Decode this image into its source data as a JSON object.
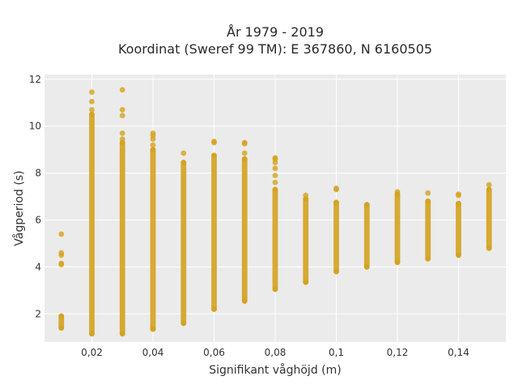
{
  "chart_data": {
    "type": "scatter",
    "title_lines": [
      "År 1979 - 2019",
      "Koordinat (Sweref 99 TM): E 367860, N 6160505"
    ],
    "xlabel": "Signifikant våghöjd (m)",
    "ylabel": "Vågperiod (s)",
    "xlim": [
      0.0045,
      0.1555
    ],
    "ylim": [
      0.8,
      12.2
    ],
    "x_ticks": [
      0.02,
      0.04,
      0.06,
      0.08,
      0.1,
      0.12,
      0.14
    ],
    "x_tick_labels": [
      "0,02",
      "0,04",
      "0,06",
      "0,08",
      "0,1",
      "0,12",
      "0,14"
    ],
    "y_ticks": [
      2,
      4,
      6,
      8,
      10,
      12
    ],
    "y_tick_labels": [
      "2",
      "4",
      "6",
      "8",
      "10",
      "12"
    ],
    "grid": true,
    "legend": "none",
    "colors": {
      "marker": "#d4a21e",
      "plot_bg": "#ebebeb",
      "grid": "#ffffff",
      "text": "#333333"
    },
    "series": [
      {
        "columns": [
          {
            "x": 0.01,
            "y_min": 1.4,
            "y_max": 1.9,
            "outliers": [
              4.1,
              4.15,
              4.5,
              4.6,
              5.4
            ]
          },
          {
            "x": 0.02,
            "y_min": 1.15,
            "y_max": 10.5,
            "outliers": [
              10.7,
              11.05,
              11.45
            ]
          },
          {
            "x": 0.03,
            "y_min": 1.15,
            "y_max": 9.3,
            "outliers": [
              9.45,
              9.7,
              10.45,
              10.7,
              11.55
            ]
          },
          {
            "x": 0.04,
            "y_min": 1.35,
            "y_max": 9.0,
            "outliers": [
              9.2,
              9.45,
              9.6,
              9.7
            ]
          },
          {
            "x": 0.05,
            "y_min": 1.6,
            "y_max": 8.45,
            "outliers": [
              8.85
            ]
          },
          {
            "x": 0.06,
            "y_min": 2.2,
            "y_max": 8.75,
            "outliers": [
              9.3,
              9.35
            ]
          },
          {
            "x": 0.07,
            "y_min": 2.55,
            "y_max": 8.6,
            "outliers": [
              8.85,
              9.25,
              9.3
            ]
          },
          {
            "x": 0.08,
            "y_min": 3.05,
            "y_max": 7.3,
            "outliers": [
              7.6,
              7.9,
              8.2,
              8.45,
              8.6,
              8.65
            ]
          },
          {
            "x": 0.09,
            "y_min": 3.35,
            "y_max": 6.9,
            "outliers": [
              7.05
            ]
          },
          {
            "x": 0.1,
            "y_min": 3.8,
            "y_max": 6.75,
            "outliers": [
              7.3,
              7.35
            ]
          },
          {
            "x": 0.11,
            "y_min": 4.0,
            "y_max": 6.65,
            "outliers": []
          },
          {
            "x": 0.12,
            "y_min": 4.2,
            "y_max": 7.1,
            "outliers": [
              7.2
            ]
          },
          {
            "x": 0.13,
            "y_min": 4.35,
            "y_max": 6.8,
            "outliers": [
              7.15
            ]
          },
          {
            "x": 0.14,
            "y_min": 4.5,
            "y_max": 6.7,
            "outliers": [
              7.05,
              7.1
            ]
          },
          {
            "x": 0.15,
            "y_min": 4.8,
            "y_max": 7.3,
            "outliers": [
              7.5
            ]
          }
        ]
      }
    ]
  }
}
